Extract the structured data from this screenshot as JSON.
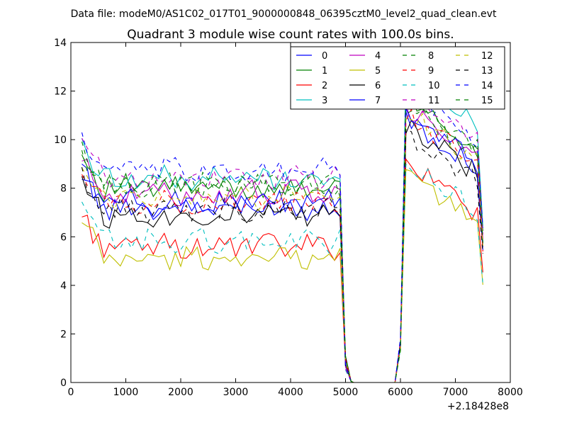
{
  "figure": {
    "suptitle": "Data file: modeM0/AS1C02_017T01_9000000848_06395cztM0_level2_quad_clean.evt"
  },
  "chart_data": {
    "type": "line",
    "title": "Quadrant 3 module wise count rates with 100.0s bins.",
    "xlabel": "",
    "ylabel": "",
    "x_offset_label": "+2.18428e8",
    "xlim": [
      0,
      8000
    ],
    "ylim": [
      0,
      14
    ],
    "xticks": [
      0,
      1000,
      2000,
      3000,
      4000,
      5000,
      6000,
      7000,
      8000
    ],
    "xtick_labels": [
      "0",
      "1000",
      "2000",
      "3000",
      "4000",
      "5000",
      "6000",
      "7000",
      "8000"
    ],
    "yticks": [
      0,
      2,
      4,
      6,
      8,
      10,
      12,
      14
    ],
    "ytick_labels": [
      "0",
      "2",
      "4",
      "6",
      "8",
      "10",
      "12",
      "14"
    ],
    "grid": false,
    "legend_position": "top-right",
    "legend_columns": 4,
    "gap_x": [
      5150,
      5200,
      5300,
      5400,
      5500,
      5600,
      5700,
      5800,
      5900
    ],
    "series": [
      {
        "name": "0",
        "color": "#0000ff",
        "dash": "solid",
        "base": 7.2,
        "post": 8.9
      },
      {
        "name": "1",
        "color": "#008000",
        "dash": "solid",
        "base": 8.0,
        "post": 9.6
      },
      {
        "name": "2",
        "color": "#ff0000",
        "dash": "solid",
        "base": 5.6,
        "post": 7.0
      },
      {
        "name": "3",
        "color": "#00bfbf",
        "dash": "solid",
        "base": 8.4,
        "post": 10.6
      },
      {
        "name": "4",
        "color": "#bf00bf",
        "dash": "solid",
        "base": 7.8,
        "post": 9.2
      },
      {
        "name": "5",
        "color": "#bfbf00",
        "dash": "solid",
        "base": 5.1,
        "post": 6.6
      },
      {
        "name": "6",
        "color": "#000000",
        "dash": "solid",
        "base": 6.9,
        "post": 8.6
      },
      {
        "name": "7",
        "color": "#0000ff",
        "dash": "solid",
        "base": 7.4,
        "post": 9.0
      },
      {
        "name": "8",
        "color": "#008000",
        "dash": "dashed",
        "base": 8.1,
        "post": 9.4
      },
      {
        "name": "9",
        "color": "#ff0000",
        "dash": "dashed",
        "base": 7.4,
        "post": 9.0
      },
      {
        "name": "10",
        "color": "#00bfbf",
        "dash": "dashed",
        "base": 5.8,
        "post": 7.1
      },
      {
        "name": "11",
        "color": "#bf00bf",
        "dash": "dashed",
        "base": 8.4,
        "post": 9.9
      },
      {
        "name": "12",
        "color": "#bfbf00",
        "dash": "dashed",
        "base": 7.6,
        "post": 9.1
      },
      {
        "name": "13",
        "color": "#000000",
        "dash": "dashed",
        "base": 7.1,
        "post": 8.3
      },
      {
        "name": "14",
        "color": "#0000ff",
        "dash": "dashed",
        "base": 8.7,
        "post": 10.1
      },
      {
        "name": "15",
        "color": "#008000",
        "dash": "dashed",
        "base": 8.2,
        "post": 9.7
      }
    ]
  }
}
